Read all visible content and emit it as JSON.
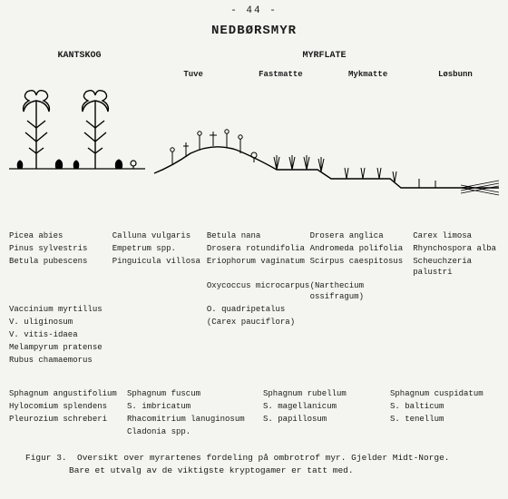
{
  "page_number": "- 44 -",
  "title": "NEDBØRSMYR",
  "zones": {
    "left": "KANTSKOG",
    "right": "MYRFLATE"
  },
  "subzones": [
    "Tuve",
    "Fastmatte",
    "Mykmatte",
    "Løsbunn"
  ],
  "diagram": {
    "stroke": "#000000",
    "bg": "#f4f4f0",
    "ground_y_forest": 95,
    "tree_trunk_width": 1.4,
    "plant_stroke_width": 1.0
  },
  "vascular": [
    [
      "Picea abies",
      "Calluna vulgaris",
      "Betula nana",
      "Drosera anglica",
      "Carex limosa"
    ],
    [
      "Pinus sylvestris",
      "Empetrum spp.",
      "Drosera rotundifolia",
      "Andromeda polifolia",
      "Rhynchospora alba"
    ],
    [
      "Betula pubescens",
      "Pinguicula villosa",
      "Eriophorum vaginatum",
      "Scirpus caespitosus",
      "Scheuchzeria palustri"
    ],
    [
      "",
      "",
      "Oxycoccus microcarpus",
      "(Narthecium ossifragum)",
      ""
    ],
    [
      "Vaccinium myrtillus",
      "",
      "O. quadripetalus",
      "",
      ""
    ],
    [
      "V. uliginosum",
      "",
      "(Carex pauciflora)",
      "",
      ""
    ],
    [
      "V. vitis-idaea",
      "",
      "",
      "",
      ""
    ],
    [
      "Melampyrum pratense",
      "",
      "",
      "",
      ""
    ],
    [
      "Rubus chamaemorus",
      "",
      "",
      "",
      ""
    ]
  ],
  "crypto": [
    [
      "Sphagnum angustifolium",
      "Sphagnum fuscum",
      "Sphagnum rubellum",
      "Sphagnum cuspidatum"
    ],
    [
      "Hylocomium splendens",
      "S. imbricatum",
      "S. magellanicum",
      "S. balticum"
    ],
    [
      "Pleurozium schreberi",
      "Rhacomitrium lanuginosum",
      "S. papillosum",
      "S. tenellum"
    ],
    [
      "",
      "Cladonia spp.",
      "",
      ""
    ]
  ],
  "caption": {
    "lead": "Figur 3.",
    "line1": "Oversikt over myrartenes fordeling på ombrotrof myr.  Gjelder Midt-Norge.",
    "line2": "Bare et utvalg av de viktigste kryptogamer er tatt med."
  }
}
